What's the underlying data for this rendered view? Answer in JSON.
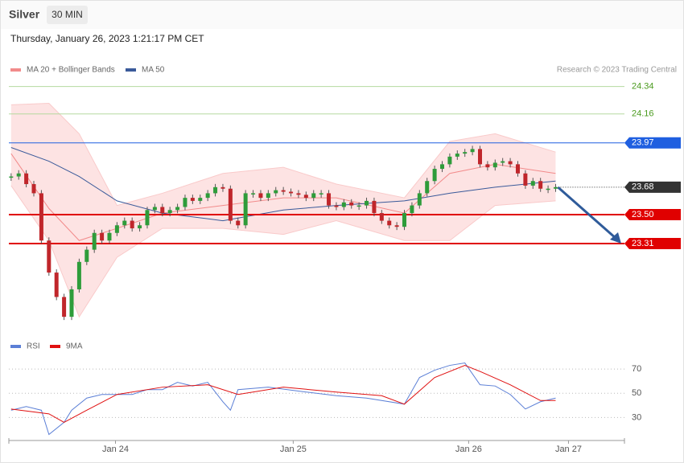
{
  "header": {
    "title": "Silver",
    "interval": "30 MIN",
    "timestamp": "Thursday, January 26, 2023 1:21:17 PM CET",
    "credit": "Research © 2023 Trading Central"
  },
  "chart_data": [
    {
      "type": "candlestick",
      "close": [
        23.75,
        23.77,
        23.7,
        23.64,
        23.33,
        23.12,
        22.96,
        22.83,
        23.01,
        23.19,
        23.27,
        23.38,
        23.33,
        23.38,
        23.43,
        23.46,
        23.41,
        23.43,
        23.53,
        23.55,
        23.51,
        23.53,
        23.55,
        23.61,
        23.59,
        23.61,
        23.64,
        23.68,
        23.67,
        23.46,
        23.43,
        23.64,
        23.64,
        23.61,
        23.64,
        23.66,
        23.65,
        23.64,
        23.63,
        23.61,
        23.64,
        23.64,
        23.56,
        23.55,
        23.58,
        23.56,
        23.56,
        23.59,
        23.51,
        23.46,
        23.43,
        23.42,
        23.51,
        23.56,
        23.64,
        23.72,
        23.8,
        23.83,
        23.88,
        23.9,
        23.91,
        23.93,
        23.83,
        23.81,
        23.84,
        23.85,
        23.83,
        23.77,
        23.69,
        23.72,
        23.67,
        23.67,
        23.68
      ],
      "up_color": "#2e9c3a",
      "down_color": "#c0262b",
      "xlim": [
        -0.3,
        81.1
      ],
      "ylim": [
        22.72,
        24.38
      ],
      "levels": [
        {
          "value": 24.34,
          "color": "#b5d9a0",
          "label_color": "#4a9a1e"
        },
        {
          "value": 24.16,
          "color": "#b5d9a0",
          "label_color": "#4a9a1e"
        },
        {
          "value": 23.97,
          "color": "#1f5fe0",
          "label_color": "#1f5fe0",
          "boxed": true
        },
        {
          "value": 23.68,
          "color": "#333333",
          "label_color": "#333333",
          "boxed": true,
          "dotted": true
        },
        {
          "value": 23.5,
          "label": "23.50",
          "color": "#e00000",
          "label_color": "#e00000",
          "boxed": true,
          "thick": true
        },
        {
          "value": 23.31,
          "color": "#e00000",
          "label_color": "#e00000",
          "boxed": true,
          "thick": true
        }
      ],
      "series": [
        {
          "name": "MA 20 + Bollinger Bands",
          "color": "#f28b8b",
          "x": [
            0,
            5,
            9,
            14,
            20,
            28,
            36,
            43,
            52,
            58,
            64,
            72
          ],
          "upper": [
            24.22,
            24.23,
            24.03,
            23.56,
            23.64,
            23.77,
            23.81,
            23.7,
            23.61,
            23.98,
            24.03,
            23.91
          ],
          "values": [
            23.9,
            23.54,
            23.33,
            23.41,
            23.51,
            23.56,
            23.61,
            23.61,
            23.51,
            23.77,
            23.83,
            23.77
          ],
          "lower": [
            23.69,
            23.33,
            22.83,
            23.22,
            23.41,
            23.41,
            23.37,
            23.46,
            23.33,
            23.33,
            23.56,
            23.59
          ]
        },
        {
          "name": "MA 50",
          "color": "#3a5a9a",
          "x": [
            0,
            5,
            9,
            14,
            20,
            28,
            36,
            43,
            52,
            58,
            64,
            72
          ],
          "values": [
            23.94,
            23.85,
            23.75,
            23.59,
            23.51,
            23.46,
            23.53,
            23.56,
            23.59,
            23.64,
            23.68,
            23.72
          ]
        }
      ]
    },
    {
      "type": "line",
      "xlim": [
        -0.3,
        81.1
      ],
      "ylim": [
        13,
        80
      ],
      "yticks": [
        30,
        50,
        70
      ],
      "xticks": [
        {
          "value": 13.8,
          "label": "Jan 24"
        },
        {
          "value": 37.3,
          "label": "Jan 25"
        },
        {
          "value": 60.5,
          "label": "Jan 26"
        },
        {
          "value": 73.7,
          "label": "Jan 27"
        }
      ],
      "series": [
        {
          "name": "RSI",
          "color": "#5b7fd6",
          "x": [
            0,
            2,
            4,
            5,
            7,
            8,
            10,
            12,
            16,
            18,
            20,
            22,
            24,
            26,
            28,
            29,
            30,
            34,
            39,
            43,
            47,
            52,
            54,
            56,
            58,
            60,
            62,
            64,
            66,
            68,
            70,
            72
          ],
          "values": [
            36,
            39,
            36,
            16,
            26,
            36,
            46,
            49,
            49,
            53,
            53,
            59,
            56,
            59,
            43,
            36,
            53,
            55,
            51,
            48,
            46,
            41,
            63,
            69,
            73,
            75,
            57,
            56,
            49,
            37,
            43,
            46
          ]
        },
        {
          "name": "9MA",
          "color": "#e01010",
          "x": [
            0,
            5,
            7,
            10,
            14,
            20,
            26,
            30,
            36,
            43,
            49,
            52,
            56,
            60,
            62,
            66,
            70,
            72
          ],
          "values": [
            37,
            33,
            26,
            36,
            49,
            55,
            57,
            49,
            55,
            51,
            48,
            41,
            63,
            73,
            68,
            57,
            44,
            44
          ]
        }
      ]
    }
  ]
}
